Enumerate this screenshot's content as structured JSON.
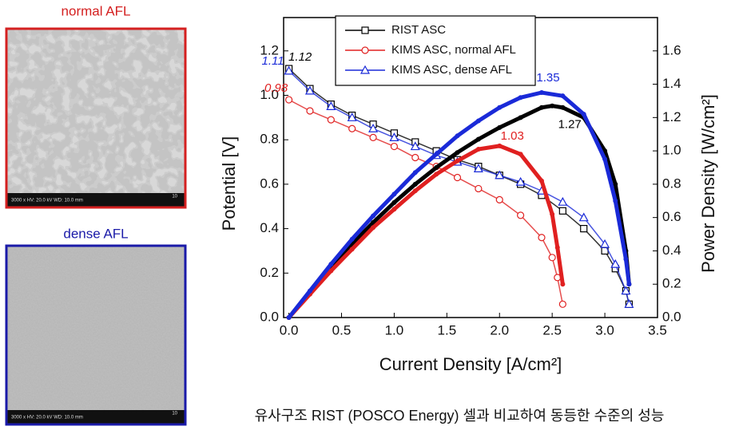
{
  "images": [
    {
      "label": "normal AFL",
      "color": "#d42020",
      "info": "3000 x  HV: 20.0 kV  WD: 10.0 mm",
      "scale": "10"
    },
    {
      "label": "dense AFL",
      "color": "#1a1aa8",
      "info": "3000 x  HV: 20.0 kV  WD: 10.0 mm",
      "scale": "10"
    }
  ],
  "caption": "유사구조 RIST (POSCO Energy) 셀과 비교하여 동등한 수준의 성능",
  "chart_data": {
    "type": "line",
    "xlabel": "Current Density [A/cm²]",
    "ylabel": "Potential [V]",
    "y2label": "Power Density [W/cm²]",
    "xlim": [
      -0.05,
      3.5
    ],
    "ylim": [
      0,
      1.35
    ],
    "y2lim": [
      0,
      1.8
    ],
    "xticks": [
      {
        "value": 0,
        "label": "0.0"
      },
      0.5,
      {
        "value": 1,
        "label": "1.0"
      },
      1.5,
      {
        "value": 2,
        "label": "2.0"
      },
      2.5,
      {
        "value": 3,
        "label": "3.0"
      },
      3.5
    ],
    "yticks": [
      {
        "value": 0,
        "label": "0.0"
      },
      0.2,
      0.4,
      0.6,
      0.8,
      {
        "value": 1,
        "label": "1.0"
      },
      1.2
    ],
    "y2ticks": [
      {
        "value": 0,
        "label": "0.0"
      },
      0.2,
      0.4,
      0.6,
      0.8,
      {
        "value": 1,
        "label": "1.0"
      },
      1.2,
      1.4,
      1.6
    ],
    "series": [
      {
        "name": "RIST ASC",
        "color": "#000000",
        "marker": "square",
        "labeled_points": [
          0
        ],
        "x": [
          0,
          0.2,
          0.4,
          0.6,
          0.8,
          1.0,
          1.2,
          1.4,
          1.6,
          1.8,
          2.0,
          2.2,
          2.4,
          2.6,
          2.8,
          3.0,
          3.1,
          3.2,
          3.23
        ],
        "values": [
          1.12,
          1.03,
          0.96,
          0.91,
          0.87,
          0.83,
          0.79,
          0.75,
          0.71,
          0.68,
          0.64,
          0.6,
          0.55,
          0.48,
          0.4,
          0.3,
          0.22,
          0.12,
          0.06
        ]
      },
      {
        "name": "KIMS ASC, normal AFL",
        "color": "#e02020",
        "marker": "circle",
        "labeled_points": [
          0
        ],
        "x": [
          0,
          0.2,
          0.4,
          0.6,
          0.8,
          1.0,
          1.2,
          1.4,
          1.6,
          1.8,
          2.0,
          2.2,
          2.4,
          2.5,
          2.55,
          2.6
        ],
        "values": [
          0.98,
          0.93,
          0.89,
          0.85,
          0.81,
          0.77,
          0.72,
          0.68,
          0.63,
          0.58,
          0.53,
          0.46,
          0.36,
          0.27,
          0.18,
          0.06
        ]
      },
      {
        "name": "KIMS ASC, dense AFL",
        "color": "#1a2ad8",
        "marker": "triangle",
        "labeled_points": [
          0
        ],
        "x": [
          0,
          0.2,
          0.4,
          0.6,
          0.8,
          1.0,
          1.2,
          1.4,
          1.6,
          1.8,
          2.0,
          2.2,
          2.4,
          2.6,
          2.8,
          3.0,
          3.1,
          3.2,
          3.23
        ],
        "values": [
          1.11,
          1.02,
          0.95,
          0.9,
          0.85,
          0.81,
          0.77,
          0.73,
          0.7,
          0.67,
          0.64,
          0.61,
          0.57,
          0.52,
          0.45,
          0.33,
          0.24,
          0.12,
          0.06
        ]
      },
      {
        "color": "#000000",
        "axis": "y2",
        "labeled_points": [
          13
        ],
        "x": [
          0,
          0.2,
          0.4,
          0.6,
          0.8,
          1.0,
          1.2,
          1.4,
          1.6,
          1.8,
          2.0,
          2.2,
          2.4,
          2.5,
          2.6,
          2.8,
          3.0,
          3.1,
          3.2,
          3.23
        ],
        "values": [
          0,
          0.15,
          0.3,
          0.44,
          0.57,
          0.69,
          0.8,
          0.9,
          0.99,
          1.07,
          1.14,
          1.2,
          1.26,
          1.27,
          1.26,
          1.2,
          1.0,
          0.8,
          0.4,
          0.2
        ]
      },
      {
        "color": "#e02020",
        "axis": "y2",
        "labeled_points": [
          10
        ],
        "x": [
          0,
          0.2,
          0.4,
          0.6,
          0.8,
          1.0,
          1.2,
          1.4,
          1.6,
          1.8,
          2.0,
          2.2,
          2.4,
          2.5,
          2.55,
          2.6
        ],
        "values": [
          0,
          0.14,
          0.28,
          0.41,
          0.54,
          0.65,
          0.76,
          0.86,
          0.94,
          1.01,
          1.03,
          0.98,
          0.82,
          0.62,
          0.42,
          0.2
        ]
      },
      {
        "color": "#1a2ad8",
        "axis": "y2",
        "labeled_points": [
          12
        ],
        "x": [
          0,
          0.2,
          0.4,
          0.6,
          0.8,
          1.0,
          1.2,
          1.4,
          1.6,
          1.8,
          2.0,
          2.2,
          2.4,
          2.6,
          2.8,
          3.0,
          3.1,
          3.2,
          3.23
        ],
        "values": [
          0,
          0.16,
          0.32,
          0.47,
          0.61,
          0.74,
          0.87,
          0.98,
          1.09,
          1.18,
          1.26,
          1.32,
          1.35,
          1.33,
          1.22,
          0.95,
          0.7,
          0.35,
          0.2
        ]
      }
    ]
  }
}
